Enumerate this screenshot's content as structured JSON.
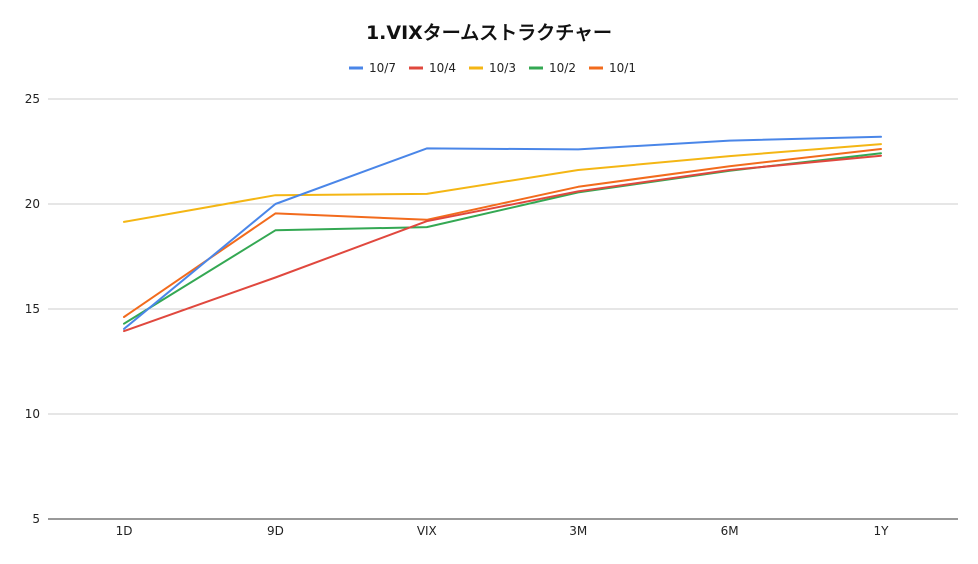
{
  "chart_data": {
    "type": "line",
    "title": "1.VIXタームストラクチャー",
    "xlabel": "",
    "ylabel": "",
    "categories": [
      "1D",
      "9D",
      "VIX",
      "3M",
      "6M",
      "1Y"
    ],
    "yticks": [
      5,
      10,
      15,
      20,
      25
    ],
    "ylim": [
      5,
      25
    ],
    "grid": true,
    "legend_position": "top-center",
    "series": [
      {
        "name": "10/7",
        "color": "#4a86e8",
        "values": [
          14.05,
          20.0,
          22.65,
          22.6,
          23.02,
          23.2
        ]
      },
      {
        "name": "10/4",
        "color": "#e0483e",
        "values": [
          13.95,
          16.5,
          19.18,
          20.6,
          21.62,
          22.3
        ]
      },
      {
        "name": "10/3",
        "color": "#f4b614",
        "values": [
          19.15,
          20.42,
          20.48,
          21.62,
          22.28,
          22.85
        ]
      },
      {
        "name": "10/2",
        "color": "#34a853",
        "values": [
          14.3,
          18.75,
          18.9,
          20.55,
          21.58,
          22.42
        ]
      },
      {
        "name": "10/1",
        "color": "#f26b1d",
        "values": [
          14.62,
          19.55,
          19.25,
          20.82,
          21.8,
          22.62
        ]
      }
    ]
  }
}
